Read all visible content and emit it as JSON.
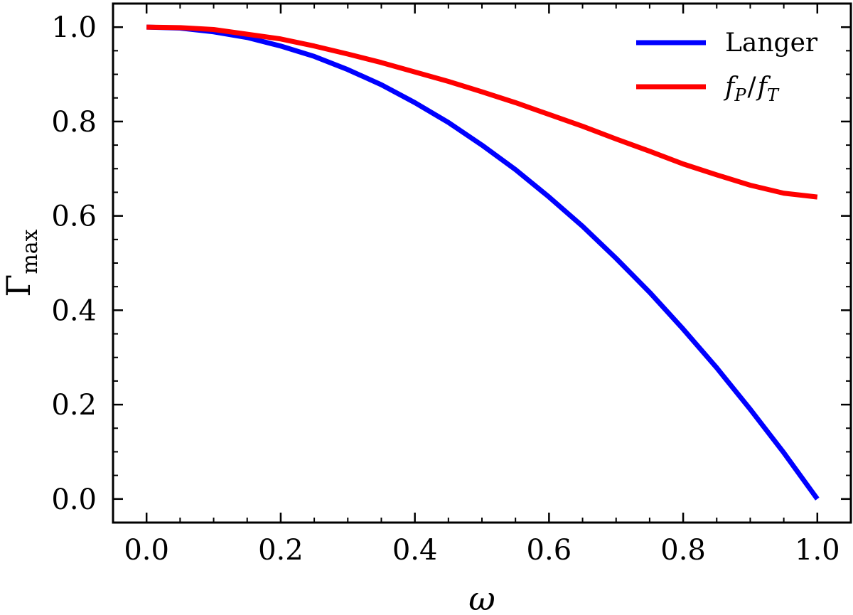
{
  "chart_data": {
    "type": "line",
    "title": "",
    "xlabel": "ω",
    "ylabel": {
      "main": "Γ",
      "sub": "max"
    },
    "xlim": [
      -0.05,
      1.05
    ],
    "ylim": [
      -0.05,
      1.05
    ],
    "xticks": [
      0.0,
      0.2,
      0.4,
      0.6,
      0.8,
      1.0
    ],
    "yticks": [
      0.0,
      0.2,
      0.4,
      0.6,
      0.8,
      1.0
    ],
    "xtick_labels": [
      "0.0",
      "0.2",
      "0.4",
      "0.6",
      "0.8",
      "1.0"
    ],
    "ytick_labels": [
      "0.0",
      "0.2",
      "0.4",
      "0.6",
      "0.8",
      "1.0"
    ],
    "minor_tick_step": 0.05,
    "grid": false,
    "legend_position": "top-right",
    "x": [
      0.0,
      0.05,
      0.1,
      0.15,
      0.2,
      0.25,
      0.3,
      0.35,
      0.4,
      0.45,
      0.5,
      0.55,
      0.6,
      0.65,
      0.7,
      0.75,
      0.8,
      0.85,
      0.9,
      0.95,
      1.0
    ],
    "series": [
      {
        "name": "Langer",
        "color": "#0000ff",
        "values": [
          1.0,
          0.998,
          0.99,
          0.978,
          0.96,
          0.938,
          0.91,
          0.878,
          0.84,
          0.798,
          0.75,
          0.698,
          0.64,
          0.578,
          0.51,
          0.438,
          0.36,
          0.278,
          0.19,
          0.098,
          0.0
        ]
      },
      {
        "name_parts": {
          "f1": "f",
          "s1": "P",
          "slash": "/",
          "f2": "f",
          "s2": "T"
        },
        "color": "#ff0000",
        "values": [
          1.0,
          0.999,
          0.995,
          0.985,
          0.975,
          0.96,
          0.943,
          0.925,
          0.905,
          0.885,
          0.863,
          0.84,
          0.815,
          0.79,
          0.763,
          0.737,
          0.71,
          0.687,
          0.665,
          0.648,
          0.64
        ]
      }
    ]
  }
}
